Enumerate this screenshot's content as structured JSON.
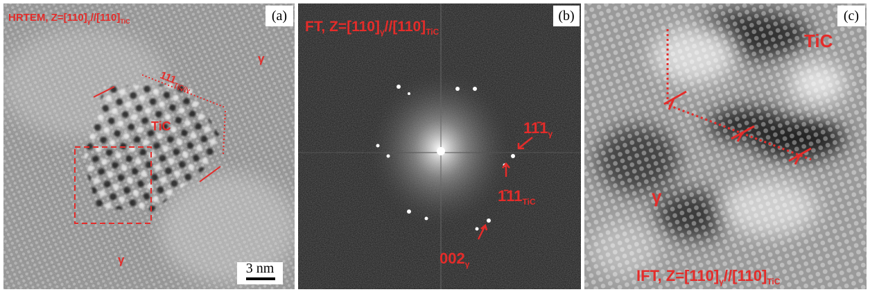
{
  "panels": [
    {
      "label": "(a)",
      "caption": {
        "main": "HRTEM, Z=[110]",
        "sub1": "γ",
        "mid": "//[110]",
        "sub2": "TiC"
      },
      "plane": {
        "main": "111",
        "sub": "TiC//γ"
      },
      "phase_labels": [
        "TiC",
        "γ",
        "γ"
      ],
      "scale_bar": "3 nm"
    },
    {
      "label": "(b)",
      "caption": {
        "main": "FT, Z=[110]",
        "sub1": "γ",
        "mid": "//[110]",
        "sub2": "TiC"
      },
      "spots": [
        {
          "main": "11̄1",
          "sub": "γ"
        },
        {
          "main": "1̄11",
          "sub": "TiC"
        },
        {
          "main": "002",
          "sub": "γ"
        }
      ]
    },
    {
      "label": "(c)",
      "caption": {
        "main": "IFT, Z=[110]",
        "sub1": "γ",
        "mid": "//[110]",
        "sub2": "TiC"
      },
      "phase_labels": [
        "TiC",
        "γ"
      ]
    }
  ]
}
